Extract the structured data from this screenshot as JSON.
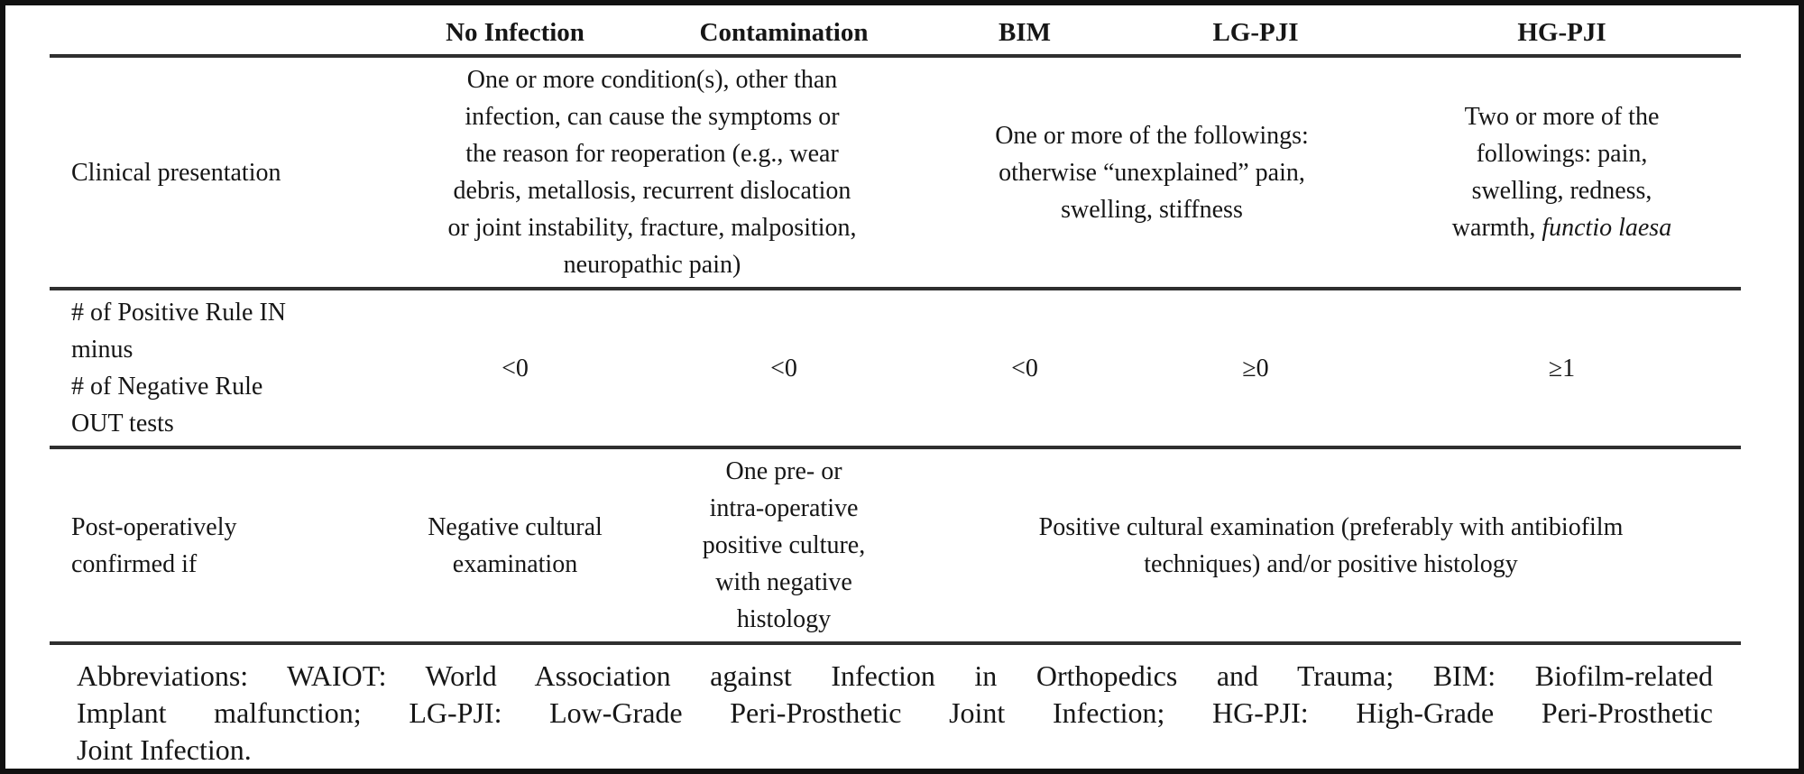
{
  "page": {
    "colors": {
      "background": "#ffffff",
      "frame": "#111111",
      "text": "#161616",
      "rule": "#2f2f2f"
    }
  },
  "table": {
    "header": {
      "label_col": "",
      "cols": [
        "No Infection",
        "Contamination",
        "BIM",
        "LG-PJI",
        "HG-PJI"
      ]
    },
    "rows": [
      {
        "label": "Clinical presentation",
        "cells": [
          {
            "text": "One or more condition(s), other than\ninfection, can cause the symptoms or\nthe reason for reoperation (e.g., wear\ndebris, metallosis, recurrent dislocation\nor joint instability, fracture, malposition,\nneuropathic pain)"
          },
          {
            "text": "One or more of the followings:\notherwise “unexplained” pain,\nswelling, stiffness"
          },
          {
            "text": "Two or more of the\nfollowings: pain,\nswelling, redness,\nwarmth, ",
            "italic_text": "functio laesa"
          }
        ]
      },
      {
        "label": "# of Positive Rule IN\nminus\n# of Negative Rule\nOUT tests",
        "cells": [
          {
            "text": "<0"
          },
          {
            "text": "<0"
          },
          {
            "text": "<0"
          },
          {
            "text": "≥0"
          },
          {
            "text": "≥1"
          }
        ]
      },
      {
        "label": "Post-operatively\nconfirmed if",
        "cells": [
          {
            "text": "Negative cultural\nexamination"
          },
          {
            "text": "One pre- or\nintra-operative\npositive culture,\nwith negative\nhistology"
          },
          {
            "text": "Positive cultural examination (preferably with antibiofilm\ntechniques) and/or positive histology"
          }
        ]
      }
    ],
    "footnote": {
      "lines": [
        "Abbreviations: WAIOT: World Association against Infection in Orthopedics and Trauma; BIM: Biofilm-related",
        "Implant malfunction; LG-PJI: Low-Grade Peri-Prosthetic Joint Infection; HG-PJI: High-Grade Peri-Prosthetic",
        "Joint Infection."
      ]
    }
  }
}
